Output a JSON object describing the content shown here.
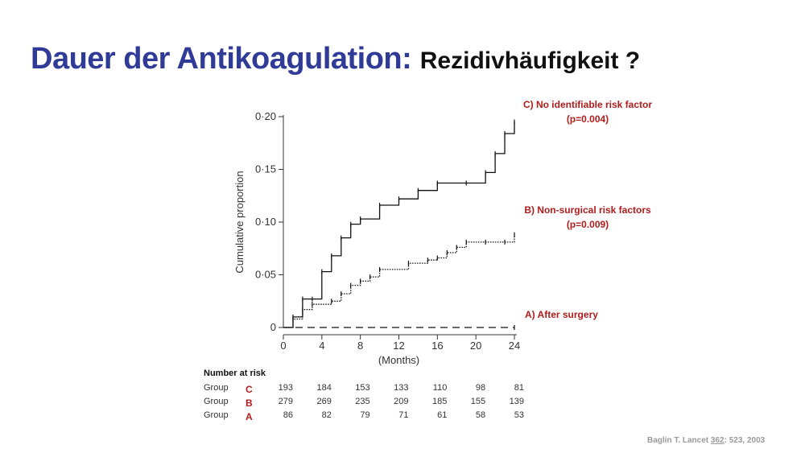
{
  "slide": {
    "title_main": "Dauer der Antikoagulation:",
    "title_sub": "Rezidivhäufigkeit ?",
    "citation_author": "Baglin T. Lancet ",
    "citation_volume": "362",
    "citation_rest": ": 523, 2003"
  },
  "annotations": {
    "group_c_line1": "C) No identifiable risk factor",
    "group_c_line2": "(p=0.004)",
    "group_b_line1": "B) Non-surgical risk factors",
    "group_b_line2": "(p=0.009)",
    "group_a": "A) After surgery"
  },
  "risk_table": {
    "header": "Number at risk",
    "row_label": "Group",
    "groups": [
      {
        "letter": "C",
        "values": [
          "193",
          "184",
          "153",
          "133",
          "110",
          "98",
          "81"
        ]
      },
      {
        "letter": "B",
        "values": [
          "279",
          "269",
          "235",
          "209",
          "185",
          "155",
          "139"
        ]
      },
      {
        "letter": "A",
        "values": [
          "86",
          "82",
          "79",
          "71",
          "61",
          "58",
          "53"
        ]
      }
    ]
  },
  "colors": {
    "title_blue": "#2f3b97",
    "annotation_red": "#b21c1c",
    "curve": "#111111",
    "axis": "#333333",
    "citation_gray": "#9a9a9a"
  },
  "chart_data": {
    "type": "line",
    "xlabel": "(Months)",
    "ylabel": "Cumulative proportion",
    "xlim": [
      0,
      24
    ],
    "ylim": [
      0,
      0.2
    ],
    "x_ticks": [
      0,
      4,
      8,
      12,
      16,
      20,
      24
    ],
    "x_tick_labels": [
      "0",
      "4",
      "8",
      "12",
      "16",
      "20",
      "24"
    ],
    "y_ticks": [
      0,
      0.05,
      0.1,
      0.15,
      0.2
    ],
    "y_tick_labels": [
      "0",
      "0·05",
      "0·10",
      "0·15",
      "0·20"
    ],
    "grid": false,
    "series": [
      {
        "name": "C",
        "style": "solid",
        "x": [
          0,
          1,
          2,
          3,
          4,
          5,
          6,
          7,
          8,
          10,
          12,
          14,
          16,
          19,
          21,
          22,
          23,
          24
        ],
        "y": [
          0,
          0.01,
          0.027,
          0.027,
          0.053,
          0.068,
          0.085,
          0.098,
          0.103,
          0.116,
          0.122,
          0.13,
          0.137,
          0.137,
          0.147,
          0.165,
          0.184,
          0.195
        ]
      },
      {
        "name": "B",
        "style": "dotted",
        "x": [
          0,
          1,
          2,
          3,
          5,
          6,
          7,
          8,
          9,
          10,
          13,
          15,
          16,
          17,
          18,
          19,
          21,
          23,
          24
        ],
        "y": [
          0,
          0.008,
          0.017,
          0.022,
          0.025,
          0.032,
          0.04,
          0.044,
          0.048,
          0.055,
          0.061,
          0.064,
          0.066,
          0.071,
          0.076,
          0.081,
          0.081,
          0.081,
          0.088
        ]
      },
      {
        "name": "A",
        "style": "dashed",
        "x": [
          0,
          24
        ],
        "y": [
          0,
          0
        ]
      }
    ]
  }
}
